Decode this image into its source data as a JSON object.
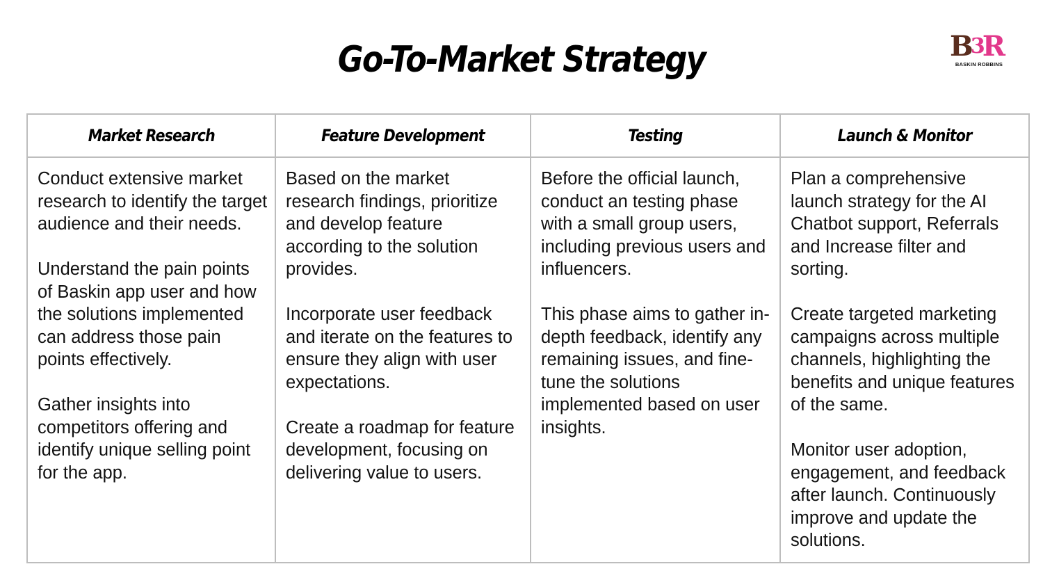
{
  "title": "Go-To-Market Strategy",
  "logo": {
    "mark_b": "B",
    "mark_r": "R",
    "tagline": "BASKIN ROBBINS"
  },
  "columns": [
    {
      "heading": "Market Research",
      "paragraphs": [
        "Conduct extensive market research to identify the target audience and their needs.",
        "Understand the pain points of Baskin app user and how the solutions implemented can address those pain points effectively.",
        "Gather insights into competitors offering and identify unique selling point for the app."
      ]
    },
    {
      "heading": "Feature Development",
      "paragraphs": [
        "Based on the market research findings, prioritize and develop feature according to the solution provides.",
        "Incorporate user feedback and iterate on the features to ensure they align with user expectations.",
        "Create a roadmap for feature development, focusing on delivering value to users."
      ]
    },
    {
      "heading": "Testing",
      "paragraphs": [
        "Before the official launch, conduct an testing phase with a small group users, including previous users and influencers.",
        "This phase aims to gather in-depth feedback, identify any remaining issues, and fine-tune the solutions implemented based on user insights."
      ]
    },
    {
      "heading": "Launch & Monitor",
      "paragraphs": [
        "Plan  a comprehensive launch strategy for the AI Chatbot support, Referrals and Increase filter and sorting.",
        "Create targeted marketing campaigns across multiple channels, highlighting the benefits and unique features of the same.",
        "Monitor user adoption, engagement, and feedback after launch. Continuously improve and update the solutions."
      ]
    }
  ]
}
